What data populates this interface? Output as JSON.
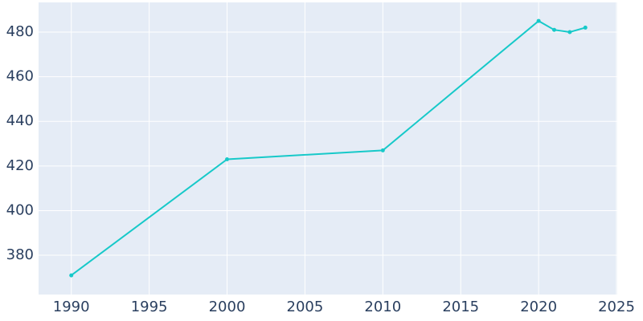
{
  "chart_data": {
    "type": "line",
    "x": [
      1990,
      2000,
      2010,
      2020,
      2021,
      2022,
      2023
    ],
    "series": [
      {
        "color": "#17c9c9",
        "values": [
          371,
          423,
          427,
          485,
          481,
          480,
          482
        ]
      }
    ],
    "xlim": [
      1987.9,
      2025.05
    ],
    "xticks": [
      1990,
      1995,
      2000,
      2005,
      2010,
      2015,
      2020,
      2025
    ],
    "ylim": [
      362.4,
      493.3
    ],
    "yticks": [
      380,
      400,
      420,
      440,
      460,
      480
    ],
    "grid": true
  }
}
